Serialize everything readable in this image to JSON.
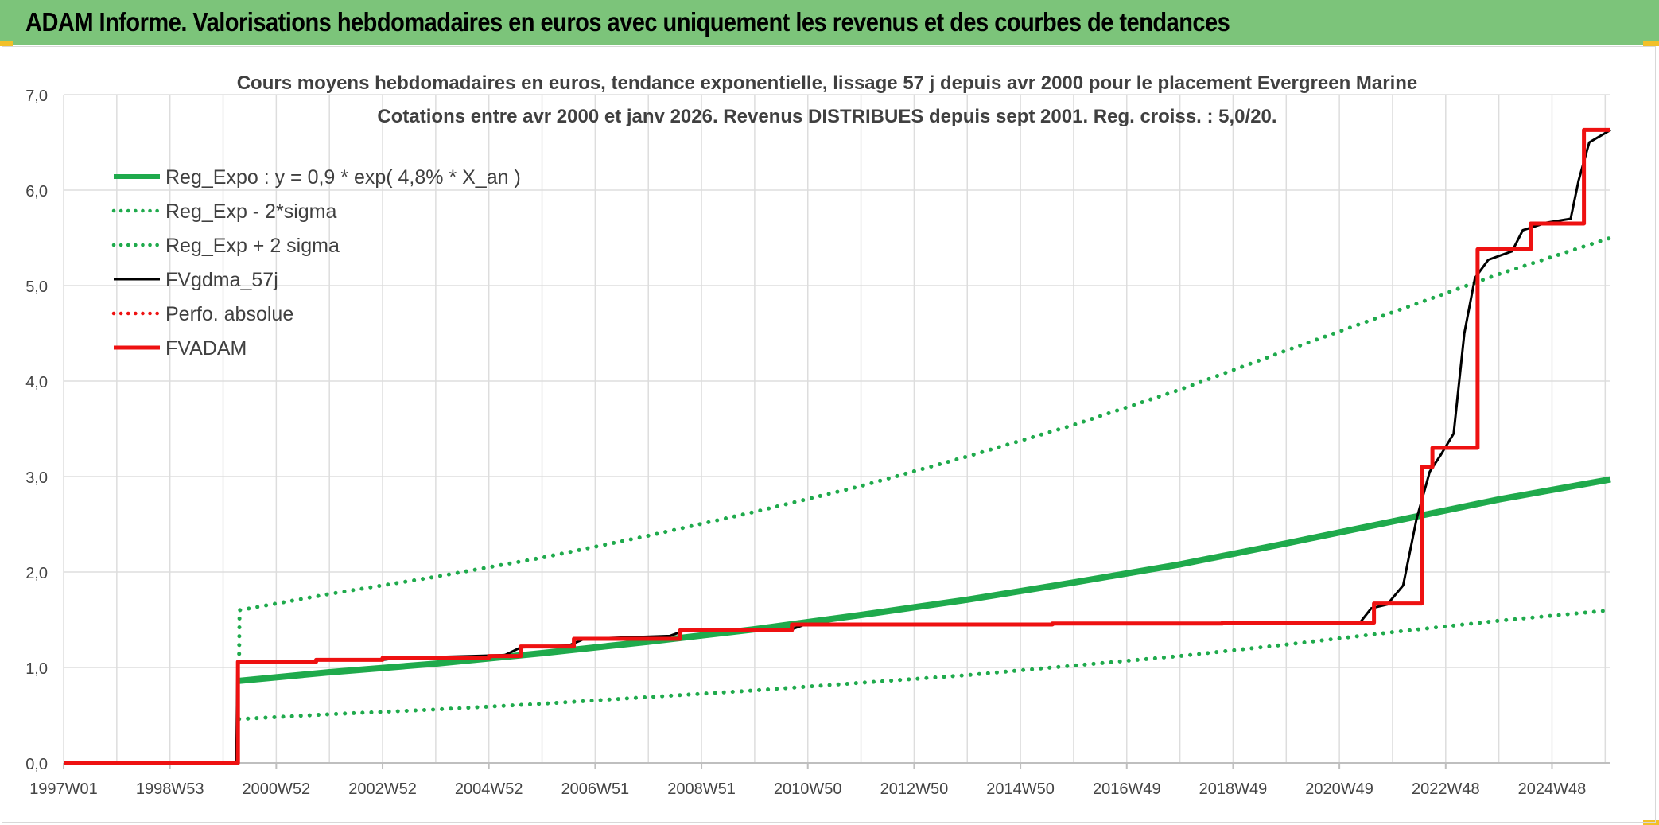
{
  "header": {
    "title": "ADAM Informe. Valorisations hebdomadaires en euros avec uniquement les revenus et des courbes de tendances"
  },
  "colors": {
    "header_bg": "#7cc47a",
    "green": "#1faa4c",
    "black": "#000000",
    "red": "#ee1111",
    "grid": "#dddddd"
  },
  "chart_data": {
    "type": "line",
    "title": "Cours moyens hebdomadaires en euros, tendance exponentielle, lissage 57 j depuis avr 2000 pour le placement Evergreen Marine",
    "subtitle": "Cotations entre avr 2000 et janv 2026. Revenus DISTRIBUES depuis sept 2001. Reg. croiss. : 5,0/20.",
    "xlabel": "",
    "ylabel": "",
    "ylim": [
      0,
      7
    ],
    "y_ticks": [
      "0,0",
      "1,0",
      "2,0",
      "3,0",
      "4,0",
      "5,0",
      "6,0",
      "7,0"
    ],
    "x_range": [
      1997.0,
      2026.1
    ],
    "x_tick_labels": [
      {
        "label": "1997W01",
        "x": 1997.0
      },
      {
        "label": "1998W53",
        "x": 1999.0
      },
      {
        "label": "2000W52",
        "x": 2001.0
      },
      {
        "label": "2002W52",
        "x": 2003.0
      },
      {
        "label": "2004W52",
        "x": 2005.0
      },
      {
        "label": "2006W51",
        "x": 2007.0
      },
      {
        "label": "2008W51",
        "x": 2009.0
      },
      {
        "label": "2010W50",
        "x": 2011.0
      },
      {
        "label": "2012W50",
        "x": 2013.0
      },
      {
        "label": "2014W50",
        "x": 2015.0
      },
      {
        "label": "2016W49",
        "x": 2017.0
      },
      {
        "label": "2018W49",
        "x": 2019.0
      },
      {
        "label": "2020W49",
        "x": 2021.0
      },
      {
        "label": "2022W48",
        "x": 2023.0
      },
      {
        "label": "2024W48",
        "x": 2025.0
      }
    ],
    "grid": true,
    "legend_position": "top-left",
    "series": [
      {
        "name": "Reg_Expo : y = 0,9 * exp( 4,8% *  X_an )",
        "color": "#1faa4c",
        "style": "solid-thick",
        "points": [
          [
            2000.3,
            0.86
          ],
          [
            2002.0,
            0.95
          ],
          [
            2004.0,
            1.04
          ],
          [
            2006.0,
            1.15
          ],
          [
            2008.0,
            1.27
          ],
          [
            2010.0,
            1.4
          ],
          [
            2012.0,
            1.55
          ],
          [
            2014.0,
            1.71
          ],
          [
            2016.0,
            1.89
          ],
          [
            2018.0,
            2.08
          ],
          [
            2020.0,
            2.3
          ],
          [
            2022.0,
            2.53
          ],
          [
            2024.0,
            2.76
          ],
          [
            2026.1,
            2.97
          ]
        ]
      },
      {
        "name": "Reg_Exp - 2*sigma",
        "color": "#1faa4c",
        "style": "dotted",
        "points": [
          [
            2000.3,
            0.46
          ],
          [
            2002.0,
            0.51
          ],
          [
            2004.0,
            0.56
          ],
          [
            2006.0,
            0.62
          ],
          [
            2008.0,
            0.69
          ],
          [
            2010.0,
            0.76
          ],
          [
            2012.0,
            0.84
          ],
          [
            2014.0,
            0.92
          ],
          [
            2016.0,
            1.02
          ],
          [
            2018.0,
            1.12
          ],
          [
            2020.0,
            1.24
          ],
          [
            2022.0,
            1.37
          ],
          [
            2024.0,
            1.49
          ],
          [
            2026.1,
            1.6
          ]
        ]
      },
      {
        "name": "Reg_Exp + 2 sigma",
        "color": "#1faa4c",
        "style": "dotted",
        "points": [
          [
            2000.3,
            1.05
          ],
          [
            2000.31,
            1.6
          ],
          [
            2002.0,
            1.77
          ],
          [
            2004.0,
            1.95
          ],
          [
            2006.0,
            2.15
          ],
          [
            2008.0,
            2.38
          ],
          [
            2010.0,
            2.63
          ],
          [
            2012.0,
            2.9
          ],
          [
            2014.0,
            3.21
          ],
          [
            2016.0,
            3.54
          ],
          [
            2018.0,
            3.91
          ],
          [
            2020.0,
            4.32
          ],
          [
            2022.0,
            4.72
          ],
          [
            2024.0,
            5.12
          ],
          [
            2026.1,
            5.5
          ]
        ]
      },
      {
        "name": "FVgdma_57j",
        "color": "#000000",
        "style": "solid",
        "points": [
          [
            1997.0,
            0.0
          ],
          [
            2000.25,
            0.0
          ],
          [
            2000.27,
            1.06
          ],
          [
            2001.6,
            1.06
          ],
          [
            2001.8,
            1.08
          ],
          [
            2003.0,
            1.08
          ],
          [
            2003.3,
            1.1
          ],
          [
            2004.7,
            1.12
          ],
          [
            2005.3,
            1.13
          ],
          [
            2005.6,
            1.21
          ],
          [
            2006.5,
            1.23
          ],
          [
            2006.8,
            1.3
          ],
          [
            2008.4,
            1.33
          ],
          [
            2008.7,
            1.39
          ],
          [
            2010.7,
            1.4
          ],
          [
            2010.95,
            1.45
          ],
          [
            2015.6,
            1.45
          ],
          [
            2015.75,
            1.46
          ],
          [
            2018.8,
            1.46
          ],
          [
            2018.95,
            1.47
          ],
          [
            2021.4,
            1.48
          ],
          [
            2021.6,
            1.62
          ],
          [
            2021.9,
            1.66
          ],
          [
            2022.2,
            1.86
          ],
          [
            2022.45,
            2.55
          ],
          [
            2022.7,
            3.05
          ],
          [
            2022.9,
            3.22
          ],
          [
            2023.15,
            3.45
          ],
          [
            2023.35,
            4.5
          ],
          [
            2023.55,
            5.08
          ],
          [
            2023.8,
            5.27
          ],
          [
            2024.25,
            5.36
          ],
          [
            2024.45,
            5.58
          ],
          [
            2024.9,
            5.66
          ],
          [
            2025.35,
            5.7
          ],
          [
            2025.5,
            6.1
          ],
          [
            2025.7,
            6.5
          ],
          [
            2026.1,
            6.63
          ]
        ]
      },
      {
        "name": "Perfo. absolue",
        "color": "#ee1111",
        "style": "dotted",
        "points": []
      },
      {
        "name": "FVADAM",
        "color": "#ee1111",
        "style": "step-thick",
        "points": [
          [
            1997.0,
            0.0
          ],
          [
            2000.28,
            0.0
          ],
          [
            2000.28,
            1.06
          ],
          [
            2001.75,
            1.06
          ],
          [
            2001.75,
            1.08
          ],
          [
            2003.0,
            1.08
          ],
          [
            2003.0,
            1.1
          ],
          [
            2005.0,
            1.1
          ],
          [
            2005.0,
            1.12
          ],
          [
            2005.6,
            1.12
          ],
          [
            2005.6,
            1.22
          ],
          [
            2006.6,
            1.22
          ],
          [
            2006.6,
            1.3
          ],
          [
            2008.6,
            1.3
          ],
          [
            2008.6,
            1.39
          ],
          [
            2010.7,
            1.39
          ],
          [
            2010.7,
            1.45
          ],
          [
            2015.6,
            1.45
          ],
          [
            2015.6,
            1.46
          ],
          [
            2018.8,
            1.46
          ],
          [
            2018.8,
            1.47
          ],
          [
            2021.65,
            1.47
          ],
          [
            2021.65,
            1.67
          ],
          [
            2022.55,
            1.67
          ],
          [
            2022.55,
            3.1
          ],
          [
            2022.75,
            3.1
          ],
          [
            2022.75,
            3.3
          ],
          [
            2023.6,
            3.3
          ],
          [
            2023.6,
            5.38
          ],
          [
            2024.6,
            5.38
          ],
          [
            2024.6,
            5.65
          ],
          [
            2025.6,
            5.65
          ],
          [
            2025.6,
            6.63
          ],
          [
            2026.1,
            6.63
          ]
        ]
      }
    ]
  }
}
